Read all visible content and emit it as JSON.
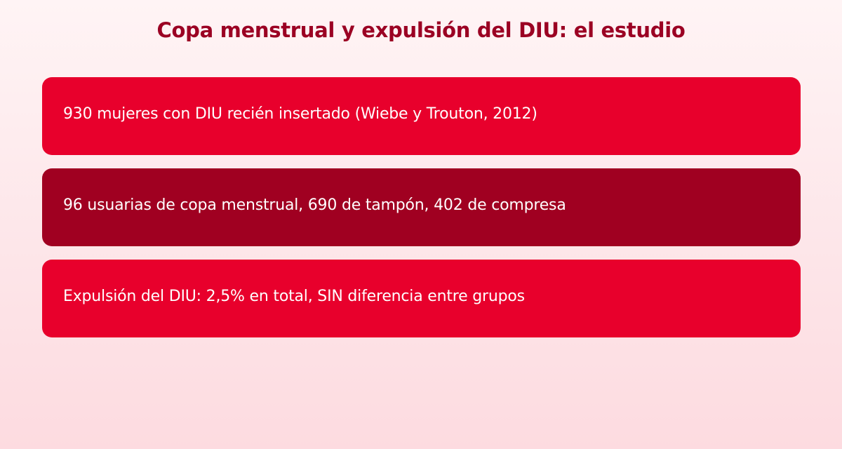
{
  "title": "Copa menstrual y expulsión del DIU: el estudio",
  "colors": {
    "title": "#9b0023",
    "card_primary": "#e8002c",
    "card_dark": "#a00021",
    "card_text": "#ffffff"
  },
  "cards": [
    {
      "text": "930 mujeres con DIU recién insertado (Wiebe y Trouton, 2012)",
      "color": "#e8002c"
    },
    {
      "text": "96 usuarias de copa menstrual, 690 de tampón, 402 de compresa",
      "color": "#a00021"
    },
    {
      "text": "Expulsión del DIU: 2,5% en total, SIN diferencia entre grupos",
      "color": "#e8002c"
    }
  ]
}
